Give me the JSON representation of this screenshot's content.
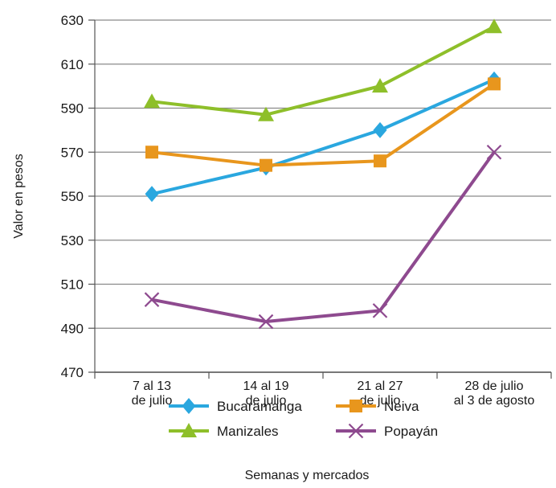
{
  "chart_data": {
    "type": "line",
    "categories": [
      [
        "7 al 13",
        "de julio"
      ],
      [
        "14 al 19",
        "de julio"
      ],
      [
        "21 al 27",
        "de julio"
      ],
      [
        "28 de julio",
        "al 3 de agosto"
      ]
    ],
    "series": [
      {
        "name": "Bucaramanga",
        "color": "#2aa7df",
        "marker": "diamond",
        "values": [
          551,
          563,
          580,
          603
        ]
      },
      {
        "name": "Neiva",
        "color": "#e8961d",
        "marker": "square",
        "values": [
          570,
          564,
          566,
          601
        ]
      },
      {
        "name": "Manizales",
        "color": "#8ebf2a",
        "marker": "triangle",
        "values": [
          593,
          587,
          600,
          627
        ]
      },
      {
        "name": "Popayán",
        "color": "#8e4a8f",
        "marker": "x",
        "values": [
          503,
          493,
          498,
          570
        ]
      }
    ],
    "yticks": [
      470,
      490,
      510,
      530,
      550,
      570,
      590,
      610,
      630
    ],
    "ylim": [
      470,
      630
    ],
    "xlabel": "Semanas y mercados",
    "ylabel": "Valor en pesos",
    "grid": true,
    "legend": "bottom"
  }
}
